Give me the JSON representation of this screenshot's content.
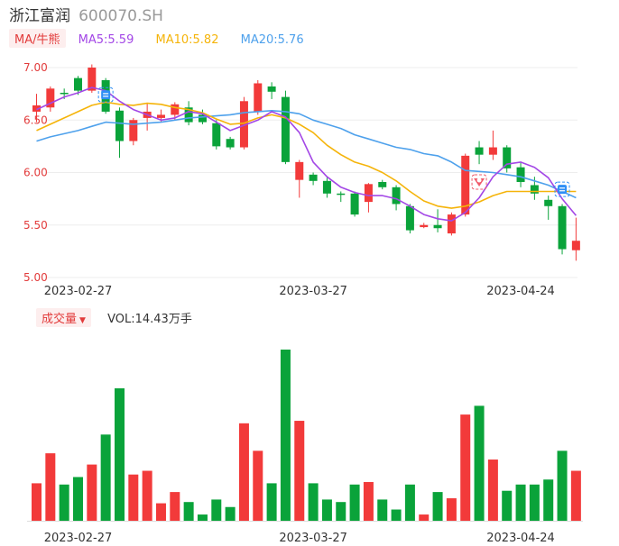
{
  "stock": {
    "name": "浙江富润",
    "code": "600070.SH"
  },
  "ma_legend": {
    "selector": "MA/牛熊",
    "items": [
      {
        "label": "MA5:5.59",
        "color": "#a347e6"
      },
      {
        "label": "MA10:5.82",
        "color": "#f5b40a"
      },
      {
        "label": "MA20:5.76",
        "color": "#4ea1ec"
      }
    ]
  },
  "volume_legend": {
    "selector": "成交量",
    "value_label": "VOL:14.43万手"
  },
  "colors": {
    "up": "#f23a3a",
    "down": "#0aa33a"
  },
  "chart_data": {
    "type": "candlestick",
    "price_ylim": [
      5.0,
      7.0
    ],
    "price_ticks": [
      "7.00",
      "6.50",
      "6.00",
      "5.50",
      "5.00"
    ],
    "x_ticks": [
      {
        "index": 3,
        "label": "2023-02-27"
      },
      {
        "index": 20,
        "label": "2023-03-27"
      },
      {
        "index": 35,
        "label": "2023-04-24"
      }
    ],
    "markers": [
      {
        "index": 5,
        "price": 6.74,
        "type": "low-signal"
      },
      {
        "index": 32,
        "price": 5.91,
        "type": "high-signal"
      },
      {
        "index": 38,
        "price": 5.84,
        "type": "low-signal"
      }
    ],
    "candles": [
      {
        "o": 6.58,
        "c": 6.64,
        "h": 6.75,
        "l": 6.48
      },
      {
        "o": 6.62,
        "c": 6.8,
        "h": 6.82,
        "l": 6.58
      },
      {
        "o": 6.76,
        "c": 6.75,
        "h": 6.8,
        "l": 6.7
      },
      {
        "o": 6.9,
        "c": 6.78,
        "h": 6.92,
        "l": 6.74
      },
      {
        "o": 6.78,
        "c": 7.0,
        "h": 7.03,
        "l": 6.76
      },
      {
        "o": 6.88,
        "c": 6.58,
        "h": 6.9,
        "l": 6.56
      },
      {
        "o": 6.59,
        "c": 6.3,
        "h": 6.62,
        "l": 6.14
      },
      {
        "o": 6.3,
        "c": 6.5,
        "h": 6.52,
        "l": 6.26
      },
      {
        "o": 6.52,
        "c": 6.58,
        "h": 6.66,
        "l": 6.4
      },
      {
        "o": 6.52,
        "c": 6.55,
        "h": 6.6,
        "l": 6.48
      },
      {
        "o": 6.55,
        "c": 6.65,
        "h": 6.67,
        "l": 6.5
      },
      {
        "o": 6.62,
        "c": 6.48,
        "h": 6.68,
        "l": 6.45
      },
      {
        "o": 6.55,
        "c": 6.48,
        "h": 6.6,
        "l": 6.46
      },
      {
        "o": 6.47,
        "c": 6.25,
        "h": 6.5,
        "l": 6.22
      },
      {
        "o": 6.32,
        "c": 6.24,
        "h": 6.34,
        "l": 6.22
      },
      {
        "o": 6.24,
        "c": 6.68,
        "h": 6.72,
        "l": 6.22
      },
      {
        "o": 6.58,
        "c": 6.85,
        "h": 6.88,
        "l": 6.55
      },
      {
        "o": 6.82,
        "c": 6.77,
        "h": 6.86,
        "l": 6.7
      },
      {
        "o": 6.72,
        "c": 6.1,
        "h": 6.78,
        "l": 6.08
      },
      {
        "o": 5.93,
        "c": 6.1,
        "h": 6.12,
        "l": 5.76
      },
      {
        "o": 5.98,
        "c": 5.92,
        "h": 6.0,
        "l": 5.88
      },
      {
        "o": 5.92,
        "c": 5.8,
        "h": 5.95,
        "l": 5.76
      },
      {
        "o": 5.8,
        "c": 5.79,
        "h": 5.82,
        "l": 5.72
      },
      {
        "o": 5.8,
        "c": 5.6,
        "h": 5.82,
        "l": 5.58
      },
      {
        "o": 5.72,
        "c": 5.89,
        "h": 5.9,
        "l": 5.62
      },
      {
        "o": 5.91,
        "c": 5.86,
        "h": 5.93,
        "l": 5.84
      },
      {
        "o": 5.86,
        "c": 5.7,
        "h": 5.88,
        "l": 5.64
      },
      {
        "o": 5.68,
        "c": 5.45,
        "h": 5.7,
        "l": 5.42
      },
      {
        "o": 5.48,
        "c": 5.5,
        "h": 5.52,
        "l": 5.47
      },
      {
        "o": 5.5,
        "c": 5.47,
        "h": 5.65,
        "l": 5.43
      },
      {
        "o": 5.42,
        "c": 5.6,
        "h": 5.62,
        "l": 5.4
      },
      {
        "o": 5.6,
        "c": 6.16,
        "h": 6.18,
        "l": 5.58
      },
      {
        "o": 6.24,
        "c": 6.17,
        "h": 6.3,
        "l": 6.08
      },
      {
        "o": 6.17,
        "c": 6.24,
        "h": 6.4,
        "l": 6.12
      },
      {
        "o": 6.24,
        "c": 6.04,
        "h": 6.26,
        "l": 6.0
      },
      {
        "o": 6.05,
        "c": 5.91,
        "h": 6.1,
        "l": 5.86
      },
      {
        "o": 5.88,
        "c": 5.8,
        "h": 5.96,
        "l": 5.74
      },
      {
        "o": 5.74,
        "c": 5.68,
        "h": 5.78,
        "l": 5.55
      },
      {
        "o": 5.68,
        "c": 5.27,
        "h": 5.7,
        "l": 5.22
      },
      {
        "o": 5.26,
        "c": 5.35,
        "h": 5.57,
        "l": 5.16
      }
    ],
    "ma5": [
      6.6,
      6.66,
      6.72,
      6.76,
      6.81,
      6.78,
      6.68,
      6.6,
      6.55,
      6.5,
      6.52,
      6.58,
      6.56,
      6.48,
      6.4,
      6.45,
      6.5,
      6.58,
      6.53,
      6.38,
      6.1,
      5.96,
      5.86,
      5.81,
      5.78,
      5.78,
      5.75,
      5.68,
      5.6,
      5.56,
      5.54,
      5.62,
      5.76,
      5.96,
      6.08,
      6.1,
      6.05,
      5.95,
      5.75,
      5.59
    ],
    "ma10": [
      6.4,
      6.46,
      6.52,
      6.58,
      6.64,
      6.67,
      6.65,
      6.64,
      6.66,
      6.65,
      6.62,
      6.6,
      6.57,
      6.51,
      6.46,
      6.47,
      6.52,
      6.55,
      6.52,
      6.46,
      6.38,
      6.26,
      6.17,
      6.1,
      6.06,
      6.0,
      5.92,
      5.82,
      5.73,
      5.68,
      5.66,
      5.68,
      5.72,
      5.78,
      5.82,
      5.82,
      5.82,
      5.82,
      5.82,
      5.82
    ],
    "ma20": [
      6.3,
      6.34,
      6.37,
      6.4,
      6.44,
      6.48,
      6.47,
      6.46,
      6.47,
      6.48,
      6.5,
      6.52,
      6.53,
      6.54,
      6.55,
      6.57,
      6.58,
      6.59,
      6.58,
      6.56,
      6.5,
      6.46,
      6.42,
      6.36,
      6.32,
      6.28,
      6.24,
      6.22,
      6.18,
      6.16,
      6.1,
      6.02,
      6.01,
      6.0,
      5.98,
      5.96,
      5.92,
      5.88,
      5.82,
      5.76
    ],
    "volume": [
      30,
      54,
      29,
      35,
      45,
      69,
      106,
      37,
      40,
      14,
      23,
      15,
      5,
      17,
      11,
      78,
      56,
      30,
      137,
      80,
      30,
      17,
      15,
      29,
      31,
      17,
      9,
      29,
      5,
      23,
      18,
      85,
      92,
      49,
      24,
      29,
      29,
      33,
      56,
      40
    ]
  }
}
